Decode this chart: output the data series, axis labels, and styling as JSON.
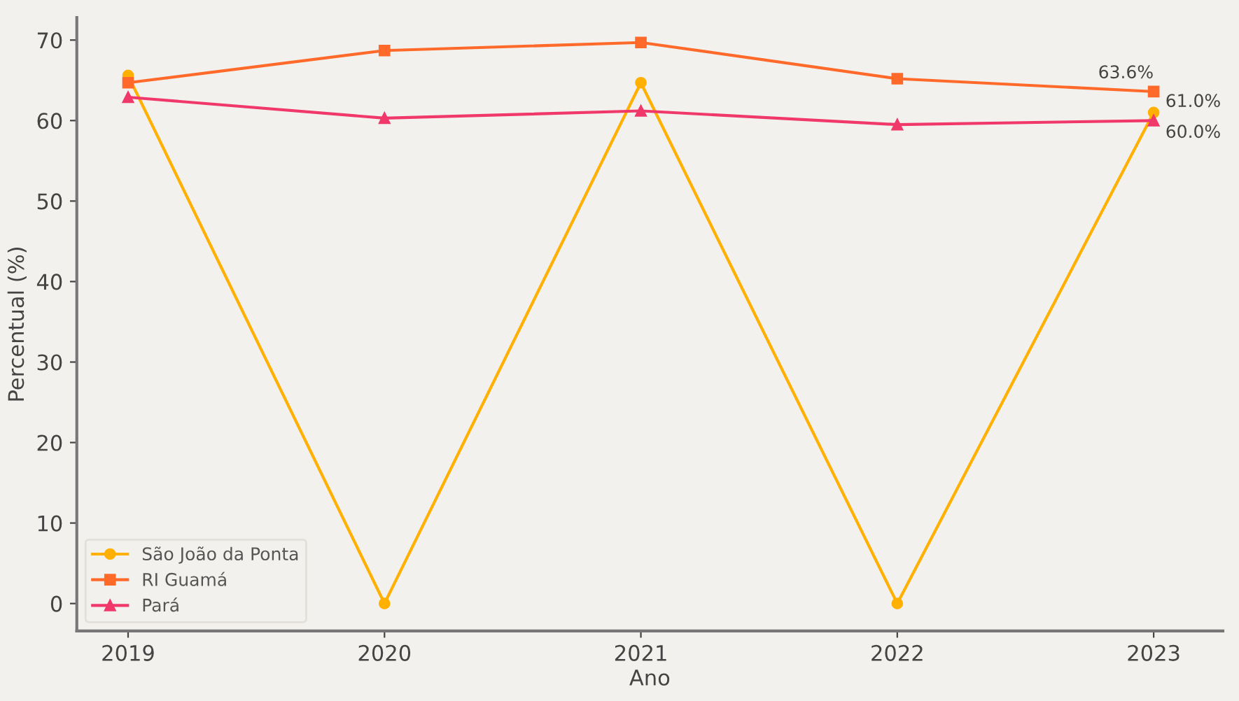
{
  "chart_data": {
    "type": "line",
    "xlabel": "Ano",
    "ylabel": "Percentual (%)",
    "x": [
      2019,
      2020,
      2021,
      2022,
      2023
    ],
    "xlim": [
      2018.8,
      2023.27
    ],
    "xticks": [
      2019,
      2020,
      2021,
      2022,
      2023
    ],
    "ylim": [
      -3.4,
      72.8
    ],
    "yticks": [
      0,
      10,
      20,
      30,
      40,
      50,
      60,
      70
    ],
    "series": [
      {
        "name": "São João da Ponta",
        "color": "#ffb000",
        "marker": "circle",
        "values": [
          65.6,
          0,
          64.7,
          0,
          61.0
        ],
        "value_labels": [
          null,
          null,
          null,
          null,
          "61.0%"
        ]
      },
      {
        "name": "RI Guamá",
        "color": "#ff6a2a",
        "marker": "square",
        "values": [
          64.7,
          68.7,
          69.7,
          65.2,
          63.6
        ],
        "value_labels": [
          null,
          null,
          null,
          null,
          "63.6%"
        ]
      },
      {
        "name": "Pará",
        "color": "#f0386b",
        "marker": "triangle",
        "values": [
          62.9,
          60.3,
          61.2,
          59.5,
          60.0
        ],
        "value_labels": [
          null,
          null,
          null,
          null,
          "60.0%"
        ]
      }
    ],
    "legend": "bottom left",
    "grid": false
  }
}
